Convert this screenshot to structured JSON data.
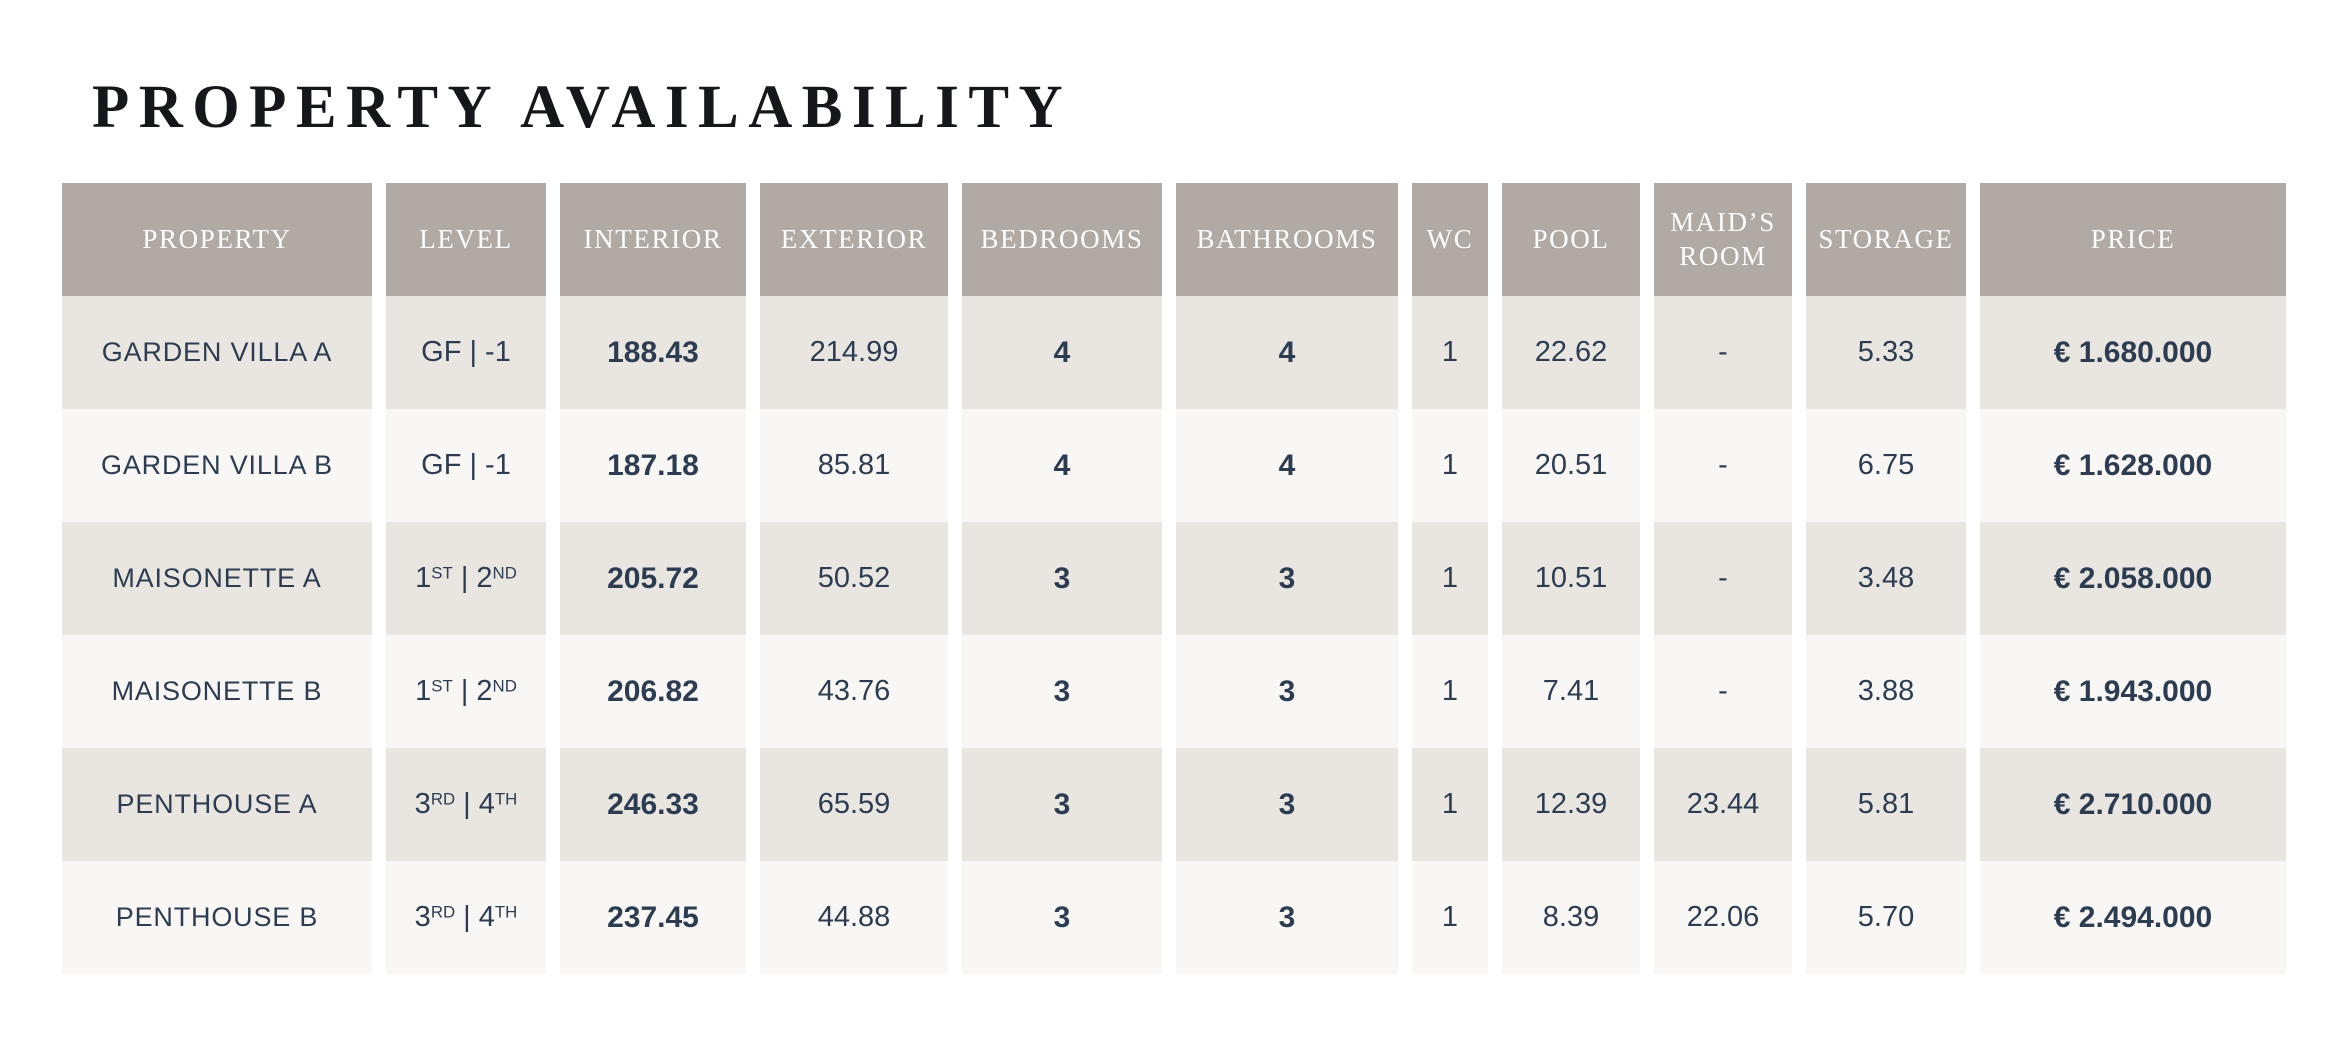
{
  "page": {
    "title": "PROPERTY AVAILABILITY"
  },
  "colors": {
    "header_background": "#b1a9a3",
    "header_text": "#fdfdfd",
    "row_odd_background": "#e9e6e2",
    "row_even_background": "#f8f7f5",
    "cell_text": "#2d3c50",
    "title_text": "#15171b",
    "page_background": "#ffffff"
  },
  "table": {
    "columns": [
      {
        "key": "property",
        "label": "PROPERTY",
        "bold": false
      },
      {
        "key": "level",
        "label": "LEVEL",
        "bold": false
      },
      {
        "key": "interior",
        "label": "INTERIOR",
        "bold": true
      },
      {
        "key": "exterior",
        "label": "EXTERIOR",
        "bold": false
      },
      {
        "key": "bedrooms",
        "label": "BEDROOMS",
        "bold": true
      },
      {
        "key": "bathrooms",
        "label": "BATHROOMS",
        "bold": true
      },
      {
        "key": "wc",
        "label": "WC",
        "bold": false
      },
      {
        "key": "pool",
        "label": "POOL",
        "bold": false
      },
      {
        "key": "maids_room",
        "label": "MAID’S ROOM",
        "bold": false
      },
      {
        "key": "storage",
        "label": "STORAGE",
        "bold": false
      },
      {
        "key": "price",
        "label": "PRICE",
        "bold": true
      }
    ],
    "rows": [
      {
        "property": "GARDEN VILLA A",
        "level": "GF | -1",
        "interior": "188.43",
        "exterior": "214.99",
        "bedrooms": "4",
        "bathrooms": "4",
        "wc": "1",
        "pool": "22.62",
        "maids_room": "-",
        "storage": "5.33",
        "price": "€ 1.680.000"
      },
      {
        "property": "GARDEN VILLA B",
        "level": "GF | -1",
        "interior": "187.18",
        "exterior": "85.81",
        "bedrooms": "4",
        "bathrooms": "4",
        "wc": "1",
        "pool": "20.51",
        "maids_room": "-",
        "storage": "6.75",
        "price": "€ 1.628.000"
      },
      {
        "property": "MAISONETTE A",
        "level": "1ST | 2ND",
        "interior": "205.72",
        "exterior": "50.52",
        "bedrooms": "3",
        "bathrooms": "3",
        "wc": "1",
        "pool": "10.51",
        "maids_room": "-",
        "storage": "3.48",
        "price": "€ 2.058.000"
      },
      {
        "property": "MAISONETTE B",
        "level": "1ST | 2ND",
        "interior": "206.82",
        "exterior": "43.76",
        "bedrooms": "3",
        "bathrooms": "3",
        "wc": "1",
        "pool": "7.41",
        "maids_room": "-",
        "storage": "3.88",
        "price": "€ 1.943.000"
      },
      {
        "property": "PENTHOUSE A",
        "level": "3RD | 4TH",
        "interior": "246.33",
        "exterior": "65.59",
        "bedrooms": "3",
        "bathrooms": "3",
        "wc": "1",
        "pool": "12.39",
        "maids_room": "23.44",
        "storage": "5.81",
        "price": "€ 2.710.000"
      },
      {
        "property": "PENTHOUSE B",
        "level": "3RD | 4TH",
        "interior": "237.45",
        "exterior": "44.88",
        "bedrooms": "3",
        "bathrooms": "3",
        "wc": "1",
        "pool": "8.39",
        "maids_room": "22.06",
        "storage": "5.70",
        "price": "€ 2.494.000"
      }
    ]
  }
}
